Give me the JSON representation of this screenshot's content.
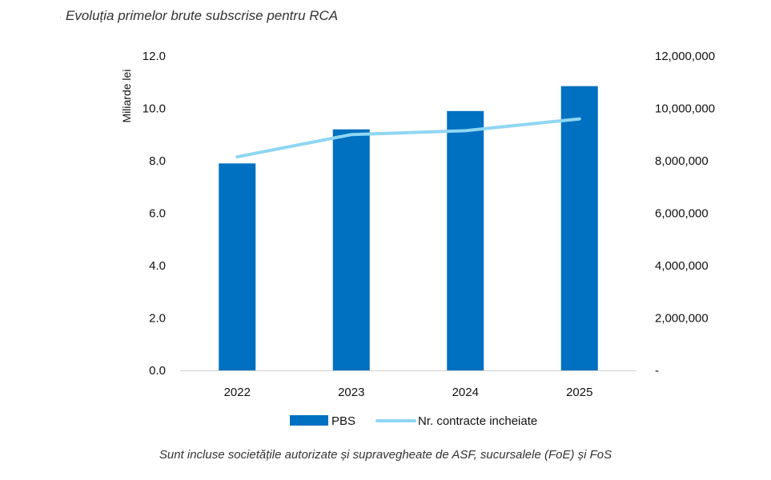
{
  "chart_data": {
    "type": "bar",
    "title": "Evoluția primelor brute subscrise pentru RCA",
    "categories": [
      "2022",
      "2023",
      "2024",
      "2025"
    ],
    "series": [
      {
        "name": "PBS",
        "kind": "bar",
        "axis": "left",
        "values": [
          7.9,
          9.2,
          9.9,
          10.85
        ],
        "color": "#0070c0"
      },
      {
        "name": "Nr. contracte incheiate",
        "kind": "line",
        "axis": "right",
        "values": [
          8150000,
          9000000,
          9150000,
          9600000
        ],
        "color": "#8fd6f2"
      }
    ],
    "ylabel": "Miliarde lei",
    "ylim": [
      0,
      12
    ],
    "y_ticks": [
      "0.0",
      "2.0",
      "4.0",
      "6.0",
      "8.0",
      "10.0",
      "12.0"
    ],
    "y2lim": [
      0,
      12000000
    ],
    "y2_ticks": [
      "-",
      "2,000,000",
      "4,000,000",
      "6,000,000",
      "8,000,000",
      "10,000,000",
      "12,000,000"
    ],
    "legend_position": "bottom",
    "footnote": "Sunt incluse societățile autorizate și supravegheate de ASF, sucursalele (FoE) și FoS"
  }
}
